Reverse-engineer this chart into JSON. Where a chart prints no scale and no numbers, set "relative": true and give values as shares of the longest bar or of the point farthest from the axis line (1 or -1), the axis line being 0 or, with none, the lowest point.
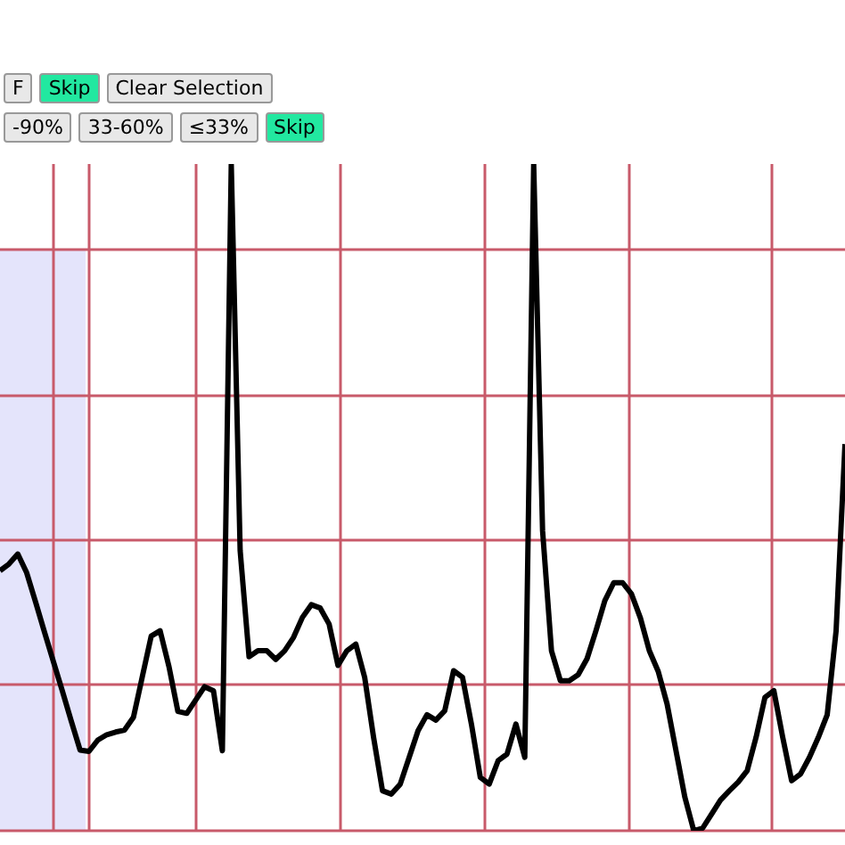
{
  "chart_data": {
    "type": "line",
    "relative": true,
    "grid": true,
    "annotations": [
      "F",
      "Skip",
      "Clear Selection",
      "-90%",
      "33-60%",
      "≤33%",
      "Skip"
    ],
    "categories": [
      null,
      null,
      null,
      null,
      null,
      null,
      null,
      null,
      null,
      null,
      null,
      null,
      null,
      null,
      null,
      null,
      null,
      null,
      null,
      null,
      null,
      null,
      null,
      null,
      null,
      null,
      null,
      null,
      null,
      null,
      null,
      null,
      null,
      null,
      null,
      null,
      null,
      null,
      null,
      null,
      null,
      null,
      null,
      null,
      null,
      null,
      null,
      null,
      null,
      null,
      null,
      null,
      null,
      null,
      null,
      null,
      null,
      null,
      null,
      null,
      null,
      null,
      null,
      null,
      null,
      null,
      null,
      null,
      null,
      null,
      null,
      null,
      null,
      null,
      null,
      null,
      null,
      null,
      null,
      null,
      null,
      null,
      null,
      null,
      null,
      null,
      null,
      null,
      null,
      null,
      null,
      null,
      null,
      null,
      null,
      null
    ],
    "series": [
      {
        "color": "#000000",
        "values": [
          0.39,
          0.4,
          0.415,
          0.387,
          0.343,
          0.298,
          0.254,
          0.21,
          0.165,
          0.121,
          0.119,
          0.136,
          0.144,
          0.148,
          0.151,
          0.17,
          0.231,
          0.292,
          0.3,
          0.246,
          0.179,
          0.176,
          0.196,
          0.216,
          0.21,
          0.12,
          1,
          0.42,
          0.261,
          0.27,
          0.27,
          0.257,
          0.27,
          0.29,
          0.32,
          0.339,
          0.334,
          0.31,
          0.248,
          0.27,
          0.28,
          0.23,
          0.14,
          0.06,
          0.055,
          0.07,
          0.11,
          0.15,
          0.174,
          0.166,
          0.18,
          0.24,
          0.23,
          0.16,
          0.08,
          0.07,
          0.105,
          0.115,
          0.16,
          0.11,
          1,
          0.45,
          0.27,
          0.225,
          0.225,
          0.234,
          0.258,
          0.3,
          0.345,
          0.372,
          0.372,
          0.355,
          0.319,
          0.27,
          0.239,
          0.19,
          0.12,
          0.05,
          0,
          0.004,
          0.025,
          0.046,
          0.06,
          0.073,
          0.09,
          0.14,
          0.2,
          0.21,
          0.14,
          0.075,
          0.085,
          0.11,
          0.14,
          0.174,
          0.3,
          0.58
        ]
      }
    ]
  }
}
